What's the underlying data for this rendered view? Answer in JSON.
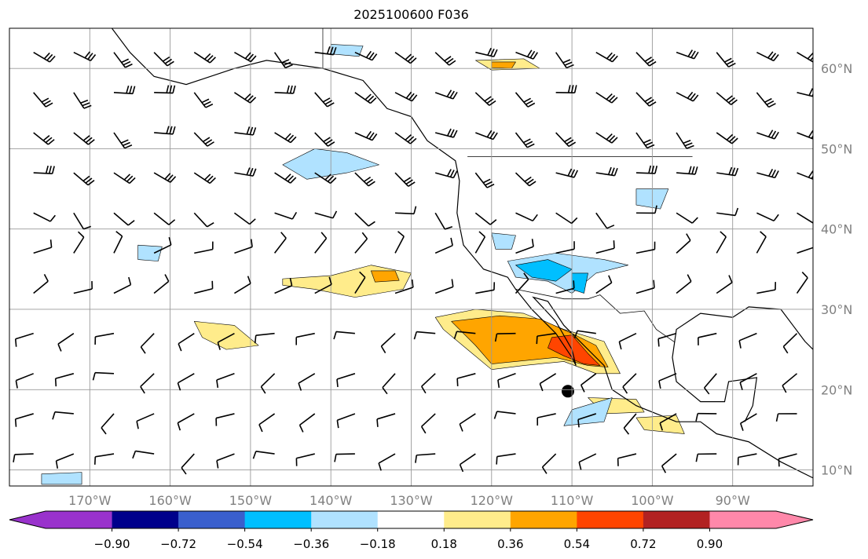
{
  "title": "2025100600 F036",
  "chart_data": {
    "type": "map",
    "title": "2025100600 F036",
    "lon_range": [
      -180,
      -80
    ],
    "lat_range": [
      8,
      65
    ],
    "lon_ticks": [
      {
        "value": -170,
        "label": "170°W"
      },
      {
        "value": -160,
        "label": "160°W"
      },
      {
        "value": -150,
        "label": "150°W"
      },
      {
        "value": -140,
        "label": "140°W"
      },
      {
        "value": -130,
        "label": "130°W"
      },
      {
        "value": -120,
        "label": "120°W"
      },
      {
        "value": -110,
        "label": "110°W"
      },
      {
        "value": -100,
        "label": "100°W"
      },
      {
        "value": -90,
        "label": "90°W"
      }
    ],
    "lat_ticks": [
      {
        "value": 60,
        "label": "60°N"
      },
      {
        "value": 50,
        "label": "50°N"
      },
      {
        "value": 40,
        "label": "40°N"
      },
      {
        "value": 30,
        "label": "30°N"
      },
      {
        "value": 20,
        "label": "20°N"
      },
      {
        "value": 10,
        "label": "10°N"
      }
    ],
    "colorbar": {
      "levels": [
        "−0.90",
        "−0.72",
        "−0.54",
        "−0.36",
        "−0.18",
        "0.18",
        "0.36",
        "0.54",
        "0.72",
        "0.90"
      ],
      "colors": [
        "#9932cc",
        "#00008b",
        "#3a5fcd",
        "#00bfff",
        "#b0e2ff",
        "#ffffff",
        "#ffec8b",
        "#ffa500",
        "#ff4500",
        "#b22222",
        "#ff88aa"
      ],
      "extend": "both"
    },
    "contours": [
      {
        "level": "0.18",
        "color": "#ffec8b",
        "points": [
          [
            -127,
            29
          ],
          [
            -122,
            30
          ],
          [
            -116,
            29.5
          ],
          [
            -111,
            27.5
          ],
          [
            -106,
            26
          ],
          [
            -104,
            22
          ],
          [
            -107,
            22
          ],
          [
            -111,
            23.5
          ],
          [
            -116,
            23
          ],
          [
            -120,
            22.5
          ],
          [
            -123,
            25
          ],
          [
            -126,
            27.5
          ]
        ]
      },
      {
        "level": "0.36",
        "color": "#ffa500",
        "points": [
          [
            -125,
            28.5
          ],
          [
            -119,
            29.2
          ],
          [
            -114,
            28.8
          ],
          [
            -110,
            27
          ],
          [
            -107,
            25.5
          ],
          [
            -105.5,
            22.8
          ],
          [
            -108,
            23
          ],
          [
            -112,
            24
          ],
          [
            -117,
            23.5
          ],
          [
            -120,
            23.2
          ],
          [
            -122,
            25.5
          ]
        ]
      },
      {
        "level": "0.54",
        "color": "#ff4500",
        "points": [
          [
            -112.5,
            26.5
          ],
          [
            -110,
            26.8
          ],
          [
            -108,
            24.5
          ],
          [
            -106.5,
            23
          ],
          [
            -108.5,
            23.2
          ],
          [
            -111,
            24.2
          ],
          [
            -113,
            25.2
          ]
        ]
      },
      {
        "level": "0.18",
        "color": "#ffec8b",
        "points": [
          [
            -146,
            33.8
          ],
          [
            -140,
            34.2
          ],
          [
            -135,
            35.5
          ],
          [
            -130,
            34.5
          ],
          [
            -131,
            32.5
          ],
          [
            -137,
            31.5
          ],
          [
            -142,
            32.5
          ],
          [
            -146,
            33
          ]
        ]
      },
      {
        "level": "0.36",
        "color": "#ffa500",
        "points": [
          [
            -135,
            34.8
          ],
          [
            -132,
            34.8
          ],
          [
            -131.5,
            33.6
          ],
          [
            -134.5,
            33.4
          ]
        ]
      },
      {
        "level": "0.18",
        "color": "#ffec8b",
        "points": [
          [
            -157,
            28.5
          ],
          [
            -152,
            28
          ],
          [
            -149,
            25.5
          ],
          [
            -153,
            25
          ],
          [
            -156,
            26.5
          ]
        ]
      },
      {
        "level": "0.18",
        "color": "#ffec8b",
        "points": [
          [
            -122,
            61
          ],
          [
            -116,
            61.2
          ],
          [
            -114,
            60
          ],
          [
            -120,
            59.8
          ]
        ]
      },
      {
        "level": "0.36",
        "color": "#ffa500",
        "points": [
          [
            -120,
            60.8
          ],
          [
            -117,
            60.8
          ],
          [
            -117.5,
            60
          ],
          [
            -120,
            60.1
          ]
        ]
      },
      {
        "level": "0.18",
        "color": "#ffec8b",
        "points": [
          [
            -108,
            19
          ],
          [
            -102,
            18.8
          ],
          [
            -101,
            17.2
          ],
          [
            -106,
            17
          ]
        ]
      },
      {
        "level": "0.18",
        "color": "#ffec8b",
        "points": [
          [
            -102,
            16.5
          ],
          [
            -97,
            16.8
          ],
          [
            -96,
            14.5
          ],
          [
            -101,
            15
          ]
        ]
      },
      {
        "level": "-0.18",
        "color": "#b0e2ff",
        "points": [
          [
            -146,
            48
          ],
          [
            -142,
            50
          ],
          [
            -138,
            49.5
          ],
          [
            -134,
            48
          ],
          [
            -138,
            47
          ],
          [
            -143,
            46.2
          ]
        ]
      },
      {
        "level": "-0.18",
        "color": "#b0e2ff",
        "points": [
          [
            -118,
            36
          ],
          [
            -112,
            37
          ],
          [
            -106,
            36.2
          ],
          [
            -103,
            35.5
          ],
          [
            -107,
            34.5
          ],
          [
            -110,
            32
          ],
          [
            -113,
            33.5
          ],
          [
            -117,
            34
          ]
        ]
      },
      {
        "level": "-0.36",
        "color": "#00bfff",
        "points": [
          [
            -117,
            35.5
          ],
          [
            -113,
            36.2
          ],
          [
            -110,
            35
          ],
          [
            -112,
            33.5
          ],
          [
            -115,
            34
          ]
        ]
      },
      {
        "level": "-0.36",
        "color": "#00bfff",
        "points": [
          [
            -110,
            34.5
          ],
          [
            -108,
            34.5
          ],
          [
            -108.5,
            32
          ],
          [
            -110,
            32.5
          ]
        ]
      },
      {
        "level": "-0.18",
        "color": "#b0e2ff",
        "points": [
          [
            -120,
            39.5
          ],
          [
            -117,
            39.2
          ],
          [
            -117.5,
            37.5
          ],
          [
            -119.5,
            37.5
          ]
        ]
      },
      {
        "level": "-0.18",
        "color": "#b0e2ff",
        "points": [
          [
            -140,
            63
          ],
          [
            -136,
            62.8
          ],
          [
            -136.5,
            61.5
          ],
          [
            -140,
            61.8
          ]
        ]
      },
      {
        "level": "-0.18",
        "color": "#b0e2ff",
        "points": [
          [
            -102,
            45
          ],
          [
            -98,
            45
          ],
          [
            -99,
            42.5
          ],
          [
            -102,
            43
          ]
        ]
      },
      {
        "level": "-0.18",
        "color": "#b0e2ff",
        "points": [
          [
            -110,
            17.5
          ],
          [
            -105,
            19
          ],
          [
            -106,
            16
          ],
          [
            -111,
            15.5
          ]
        ]
      },
      {
        "level": "-0.18",
        "color": "#b0e2ff",
        "points": [
          [
            -164,
            38
          ],
          [
            -161,
            37.8
          ],
          [
            -161.5,
            36
          ],
          [
            -164,
            36.2
          ]
        ]
      },
      {
        "level": "-0.18",
        "color": "#b0e2ff",
        "points": [
          [
            -176,
            9.5
          ],
          [
            -171,
            9.7
          ],
          [
            -171,
            8.2
          ],
          [
            -176,
            8.2
          ]
        ]
      }
    ],
    "markers": [
      {
        "lon": -110.5,
        "lat": 19.8,
        "type": "dot"
      }
    ]
  }
}
